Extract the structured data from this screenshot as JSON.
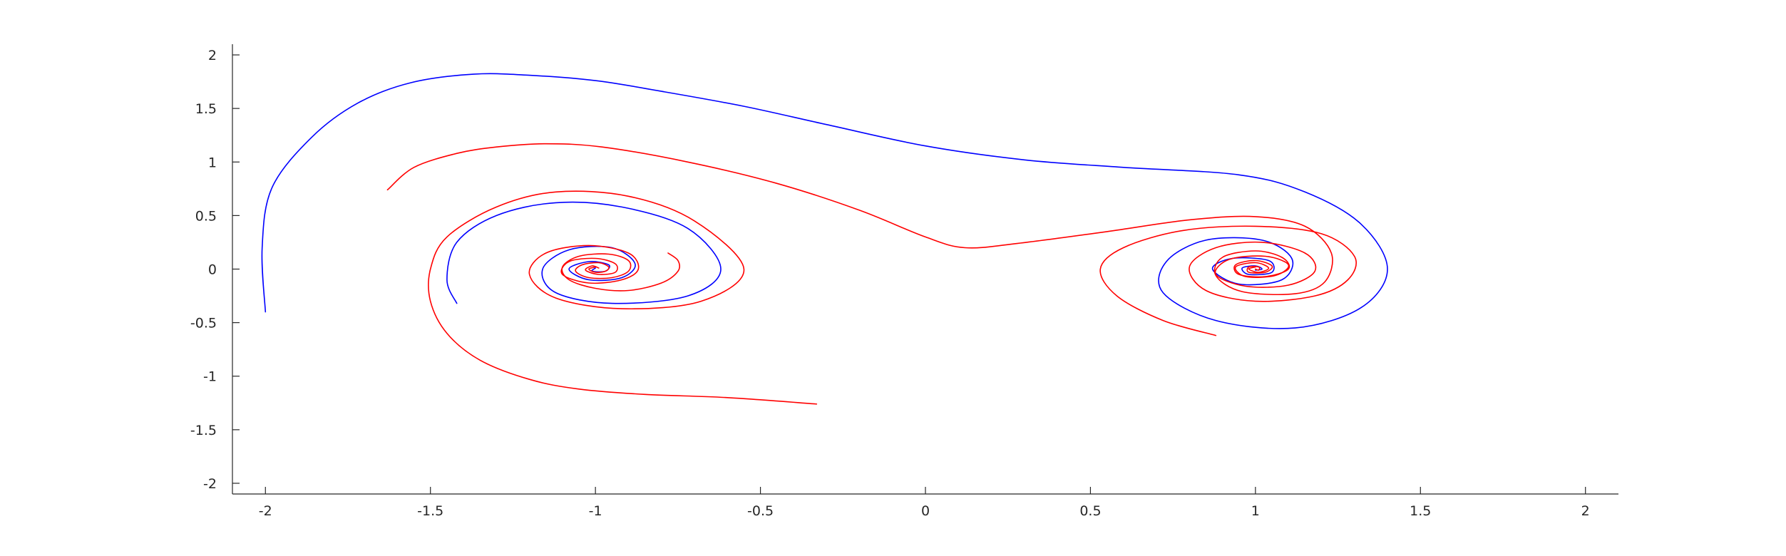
{
  "chart_data": {
    "type": "line",
    "title": "",
    "xlabel": "",
    "ylabel": "",
    "xlim": [
      -2.1,
      2.1
    ],
    "ylim": [
      -2.1,
      2.1
    ],
    "grid": false,
    "x_ticks": [
      -2,
      -1.5,
      -1,
      -0.5,
      0,
      0.5,
      1,
      1.5,
      2
    ],
    "x_tick_labels": [
      "-2",
      "-1.5",
      "-1",
      "-0.5",
      "0",
      "0.5",
      "1",
      "1.5",
      "2"
    ],
    "y_ticks": [
      2,
      1.5,
      1,
      0.5,
      0,
      -0.5,
      -1,
      -1.5,
      -2
    ],
    "y_tick_labels": [
      "2",
      "1.5",
      "1",
      "0.5",
      "0",
      "-0.5",
      "-1",
      "-1.5",
      "-2"
    ],
    "series": [
      {
        "color": "#0000ff",
        "points": [
          [
            -2.0,
            -0.4
          ],
          [
            -2.01,
            0.2
          ],
          [
            -1.98,
            0.76
          ],
          [
            -1.86,
            1.23
          ],
          [
            -1.72,
            1.55
          ],
          [
            -1.56,
            1.74
          ],
          [
            -1.37,
            1.82
          ],
          [
            -1.2,
            1.81
          ],
          [
            -1.0,
            1.76
          ],
          [
            -0.8,
            1.66
          ],
          [
            -0.55,
            1.52
          ],
          [
            -0.3,
            1.35
          ],
          [
            0.0,
            1.15
          ],
          [
            0.3,
            1.02
          ],
          [
            0.6,
            0.95
          ],
          [
            0.95,
            0.88
          ],
          [
            1.15,
            0.72
          ],
          [
            1.32,
            0.42
          ],
          [
            1.4,
            0.0
          ],
          [
            1.32,
            -0.36
          ],
          [
            1.12,
            -0.55
          ],
          [
            0.88,
            -0.48
          ],
          [
            0.72,
            -0.22
          ],
          [
            0.73,
            0.07
          ],
          [
            0.85,
            0.27
          ],
          [
            1.02,
            0.27
          ],
          [
            1.11,
            0.1
          ],
          [
            1.08,
            -0.1
          ],
          [
            0.95,
            -0.14
          ],
          [
            0.87,
            0.0
          ],
          [
            0.93,
            0.1
          ],
          [
            1.04,
            0.08
          ],
          [
            1.05,
            -0.03
          ],
          [
            0.98,
            -0.05
          ],
          [
            0.96,
            0.01
          ],
          [
            1.0,
            0.03
          ],
          [
            1.02,
            0.0
          ],
          [
            1.0,
            -0.01
          ]
        ]
      },
      {
        "color": "#0000ff",
        "points": [
          [
            -1.42,
            -0.32
          ],
          [
            -1.45,
            -0.1
          ],
          [
            -1.42,
            0.25
          ],
          [
            -1.3,
            0.5
          ],
          [
            -1.12,
            0.62
          ],
          [
            -0.92,
            0.58
          ],
          [
            -0.72,
            0.38
          ],
          [
            -0.62,
            0.0
          ],
          [
            -0.72,
            -0.25
          ],
          [
            -0.95,
            -0.32
          ],
          [
            -1.12,
            -0.22
          ],
          [
            -1.16,
            0.0
          ],
          [
            -1.08,
            0.18
          ],
          [
            -0.95,
            0.2
          ],
          [
            -0.88,
            0.05
          ],
          [
            -0.92,
            -0.08
          ],
          [
            -1.02,
            -0.1
          ],
          [
            -1.08,
            0.0
          ],
          [
            -1.02,
            0.07
          ],
          [
            -0.96,
            0.04
          ],
          [
            -0.97,
            -0.02
          ],
          [
            -1.01,
            -0.02
          ],
          [
            -1.0,
            0.01
          ]
        ]
      },
      {
        "color": "#ff0000",
        "points": [
          [
            -1.63,
            0.74
          ],
          [
            -1.55,
            0.95
          ],
          [
            -1.42,
            1.08
          ],
          [
            -1.3,
            1.14
          ],
          [
            -1.15,
            1.17
          ],
          [
            -0.98,
            1.14
          ],
          [
            -0.72,
            1.0
          ],
          [
            -0.45,
            0.8
          ],
          [
            -0.2,
            0.55
          ],
          [
            0.0,
            0.3
          ],
          [
            0.12,
            0.2
          ],
          [
            0.28,
            0.24
          ],
          [
            0.55,
            0.35
          ],
          [
            0.8,
            0.46
          ],
          [
            1.0,
            0.49
          ],
          [
            1.15,
            0.4
          ],
          [
            1.23,
            0.15
          ],
          [
            1.21,
            -0.12
          ],
          [
            1.12,
            -0.23
          ],
          [
            0.96,
            -0.21
          ],
          [
            0.88,
            -0.06
          ],
          [
            0.9,
            0.11
          ],
          [
            1.0,
            0.17
          ],
          [
            1.08,
            0.11
          ],
          [
            1.1,
            0.0
          ],
          [
            1.03,
            -0.07
          ],
          [
            0.95,
            -0.05
          ],
          [
            0.94,
            0.04
          ],
          [
            1.0,
            0.08
          ],
          [
            1.05,
            0.03
          ],
          [
            1.03,
            -0.03
          ],
          [
            0.98,
            -0.03
          ],
          [
            0.98,
            0.02
          ],
          [
            1.01,
            0.02
          ],
          [
            1.01,
            -0.01
          ],
          [
            1.0,
            0.0
          ]
        ]
      },
      {
        "color": "#ff0000",
        "points": [
          [
            0.88,
            -0.62
          ],
          [
            0.72,
            -0.48
          ],
          [
            0.58,
            -0.25
          ],
          [
            0.53,
            0.0
          ],
          [
            0.6,
            0.2
          ],
          [
            0.78,
            0.36
          ],
          [
            1.0,
            0.4
          ],
          [
            1.2,
            0.33
          ],
          [
            1.3,
            0.12
          ],
          [
            1.28,
            -0.1
          ],
          [
            1.18,
            -0.25
          ],
          [
            1.0,
            -0.3
          ],
          [
            0.85,
            -0.2
          ],
          [
            0.8,
            0.02
          ],
          [
            0.88,
            0.2
          ],
          [
            1.02,
            0.25
          ],
          [
            1.15,
            0.15
          ],
          [
            1.18,
            -0.02
          ],
          [
            1.1,
            -0.15
          ],
          [
            0.97,
            -0.16
          ],
          [
            0.88,
            -0.05
          ],
          [
            0.92,
            0.09
          ],
          [
            1.03,
            0.12
          ],
          [
            1.1,
            0.04
          ],
          [
            1.06,
            -0.06
          ],
          [
            0.97,
            -0.07
          ],
          [
            0.94,
            0.02
          ],
          [
            1.0,
            0.06
          ],
          [
            1.04,
            0.01
          ],
          [
            1.01,
            -0.03
          ],
          [
            0.98,
            0.0
          ],
          [
            1.0,
            0.02
          ]
        ]
      },
      {
        "color": "#ff0000",
        "points": [
          [
            -0.33,
            -1.26
          ],
          [
            -0.6,
            -1.2
          ],
          [
            -0.85,
            -1.17
          ],
          [
            -1.05,
            -1.12
          ],
          [
            -1.2,
            -1.03
          ],
          [
            -1.35,
            -0.85
          ],
          [
            -1.45,
            -0.6
          ],
          [
            -1.5,
            -0.3
          ],
          [
            -1.5,
            0.0
          ],
          [
            -1.45,
            0.3
          ],
          [
            -1.3,
            0.58
          ],
          [
            -1.12,
            0.72
          ],
          [
            -0.9,
            0.68
          ],
          [
            -0.7,
            0.45
          ],
          [
            -0.55,
            0.0
          ],
          [
            -0.68,
            -0.3
          ],
          [
            -0.92,
            -0.37
          ],
          [
            -1.12,
            -0.27
          ],
          [
            -1.2,
            -0.05
          ],
          [
            -1.15,
            0.15
          ],
          [
            -1.02,
            0.22
          ],
          [
            -0.9,
            0.15
          ],
          [
            -0.87,
            0.0
          ],
          [
            -0.92,
            -0.1
          ],
          [
            -1.02,
            -0.13
          ],
          [
            -1.1,
            -0.05
          ],
          [
            -1.08,
            0.07
          ],
          [
            -1.0,
            0.1
          ],
          [
            -0.94,
            0.05
          ],
          [
            -0.94,
            -0.03
          ],
          [
            -0.99,
            -0.05
          ],
          [
            -1.03,
            -0.01
          ],
          [
            -1.01,
            0.03
          ],
          [
            -0.99,
            0.01
          ]
        ]
      },
      {
        "color": "#ff0000",
        "points": [
          [
            -0.78,
            0.15
          ],
          [
            -0.75,
            0.08
          ],
          [
            -0.75,
            -0.02
          ],
          [
            -0.8,
            -0.13
          ],
          [
            -0.9,
            -0.2
          ],
          [
            -1.0,
            -0.18
          ],
          [
            -1.08,
            -0.1
          ],
          [
            -1.1,
            0.02
          ],
          [
            -1.05,
            0.12
          ],
          [
            -0.96,
            0.14
          ],
          [
            -0.9,
            0.08
          ],
          [
            -0.9,
            -0.02
          ],
          [
            -0.95,
            -0.08
          ],
          [
            -1.02,
            -0.08
          ],
          [
            -1.06,
            -0.02
          ],
          [
            -1.04,
            0.04
          ],
          [
            -0.99,
            0.06
          ],
          [
            -0.96,
            0.02
          ],
          [
            -0.97,
            -0.02
          ],
          [
            -1.0,
            -0.03
          ],
          [
            -1.02,
            0.0
          ],
          [
            -1.0,
            0.02
          ]
        ]
      }
    ]
  }
}
